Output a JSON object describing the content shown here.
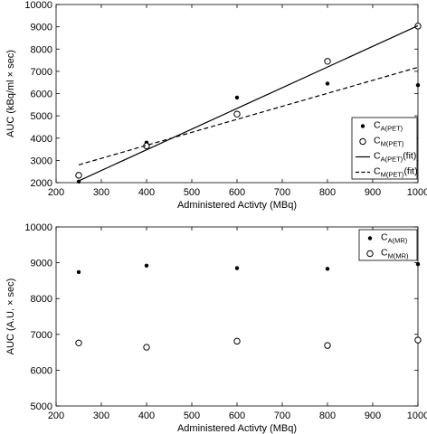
{
  "chart_data": [
    {
      "type": "scatter",
      "xlabel": "Administered Activty (MBq)",
      "ylabel": "AUC (kBq/ml × sec)",
      "xlim": [
        200,
        1000
      ],
      "ylim": [
        2000,
        10000
      ],
      "xticks": [
        200,
        300,
        400,
        500,
        600,
        700,
        800,
        900,
        1000
      ],
      "yticks": [
        2000,
        3000,
        4000,
        5000,
        6000,
        7000,
        8000,
        9000,
        10000
      ],
      "legend_position": "lower-right",
      "series": [
        {
          "name": "C",
          "name_sub": "A(PET)",
          "marker": "filled-dot",
          "x": [
            250,
            400,
            600,
            800,
            1000
          ],
          "y": [
            2050,
            3800,
            5820,
            6450,
            6380
          ]
        },
        {
          "name": "C",
          "name_sub": "M(PET)",
          "marker": "open-circle",
          "x": [
            250,
            400,
            600,
            800,
            1000
          ],
          "y": [
            2330,
            3650,
            5080,
            7450,
            9030
          ]
        },
        {
          "name": "C",
          "name_sub": "A(PET)",
          "name_suffix": "(fit)",
          "style": "solid-line",
          "x": [
            250,
            1000
          ],
          "y": [
            2080,
            9050
          ]
        },
        {
          "name": "C",
          "name_sub": "M(PET)",
          "name_suffix": "(fit)",
          "style": "dashed-line",
          "x": [
            250,
            1000
          ],
          "y": [
            2800,
            7180
          ]
        }
      ]
    },
    {
      "type": "scatter",
      "xlabel": "Administered Activty (MBq)",
      "ylabel": "AUC (A.U. × sec)",
      "xlim": [
        200,
        1000
      ],
      "ylim": [
        5000,
        10000
      ],
      "xticks": [
        200,
        300,
        400,
        500,
        600,
        700,
        800,
        900,
        1000
      ],
      "yticks": [
        5000,
        6000,
        7000,
        8000,
        9000,
        10000
      ],
      "legend_position": "top-right",
      "series": [
        {
          "name": "C",
          "name_sub": "A(MR)",
          "marker": "filled-dot",
          "x": [
            250,
            400,
            600,
            800,
            1000
          ],
          "y": [
            8740,
            8920,
            8850,
            8830,
            8960
          ]
        },
        {
          "name": "C",
          "name_sub": "M(MR)",
          "marker": "open-circle",
          "x": [
            250,
            400,
            600,
            800,
            1000
          ],
          "y": [
            6760,
            6640,
            6810,
            6690,
            6840
          ]
        }
      ]
    }
  ]
}
